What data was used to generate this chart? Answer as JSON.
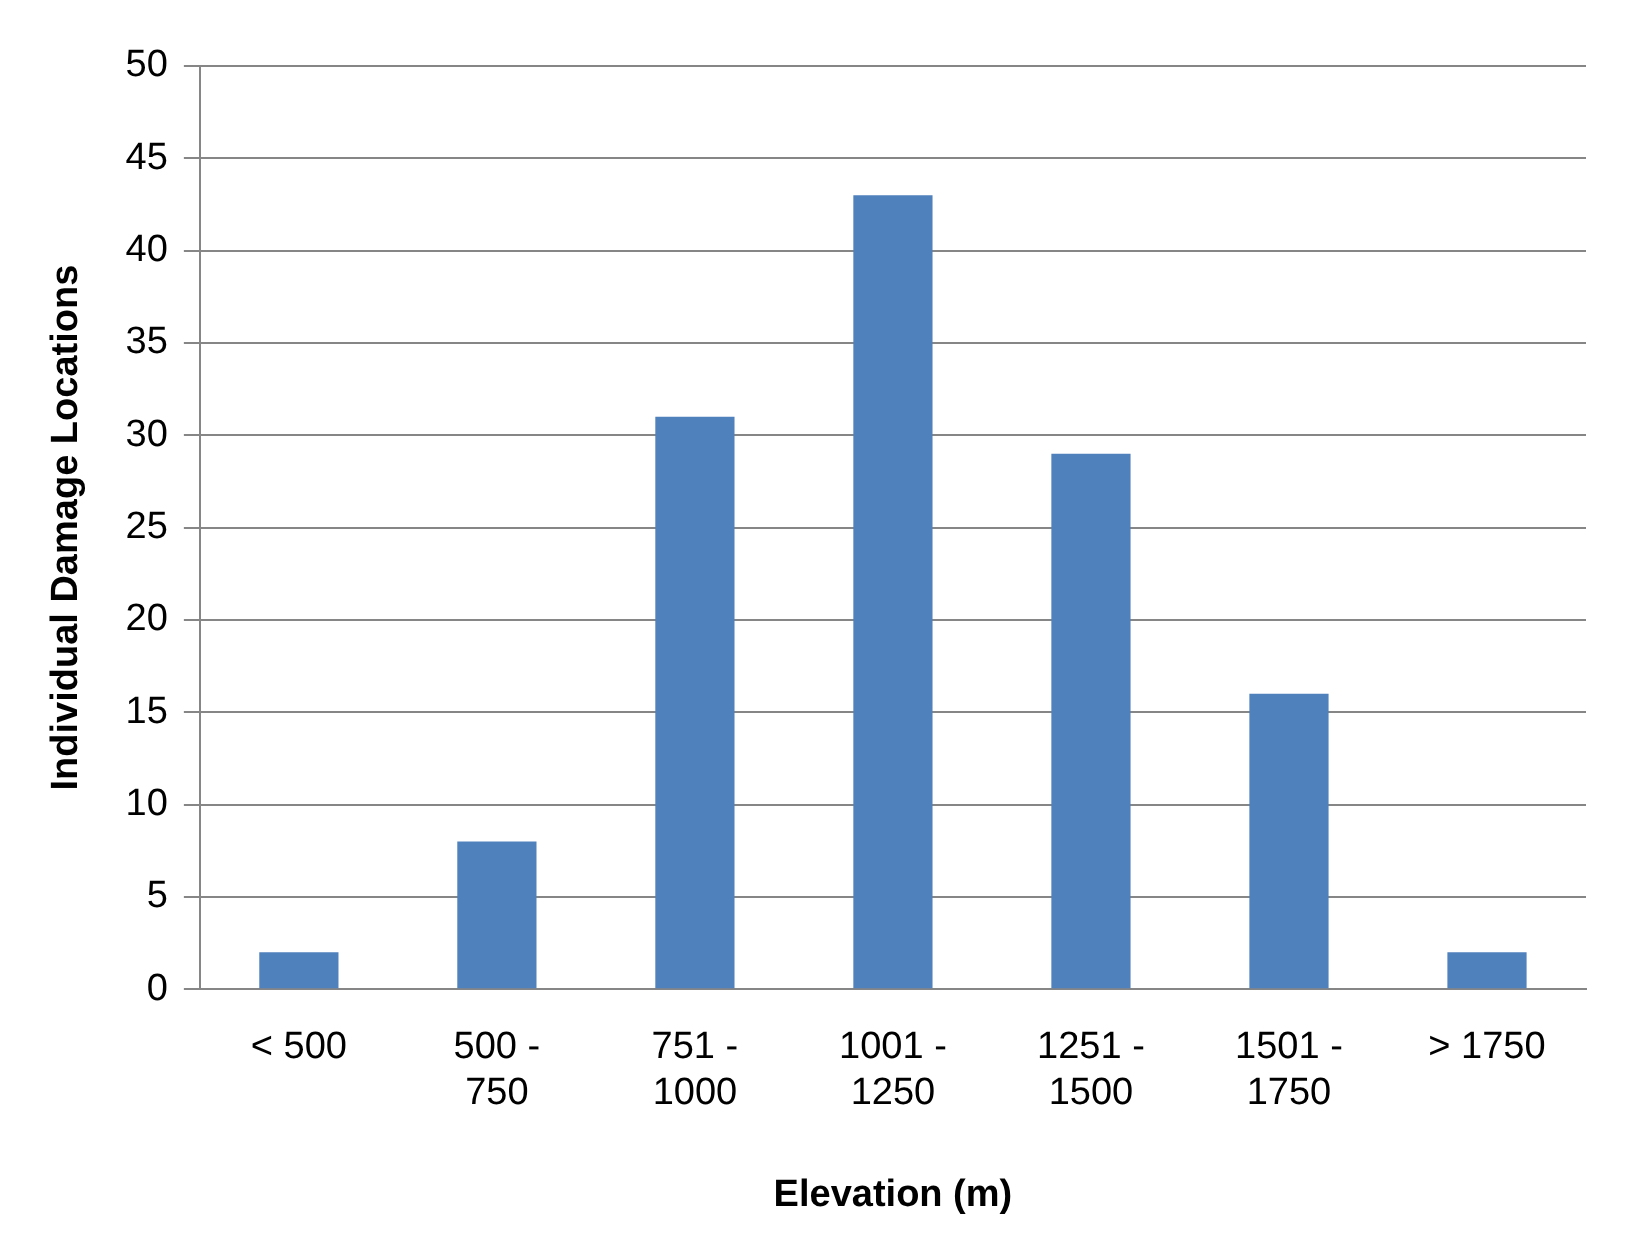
{
  "chart_data": {
    "type": "bar",
    "xlabel": "Elevation (m)",
    "ylabel": "Individual Damage Locations",
    "categories": [
      "< 500",
      "500 - 750",
      "751 - 1000",
      "1001 - 1250",
      "1251 - 1500",
      "1501 - 1750",
      "> 1750"
    ],
    "values": [
      2,
      8,
      31,
      43,
      29,
      16,
      2
    ],
    "color": "#4f81bd",
    "ylim": [
      0,
      50
    ],
    "yticks": [
      0,
      5,
      10,
      15,
      20,
      25,
      30,
      35,
      40,
      45,
      50
    ],
    "grid": "y",
    "legend": false
  }
}
